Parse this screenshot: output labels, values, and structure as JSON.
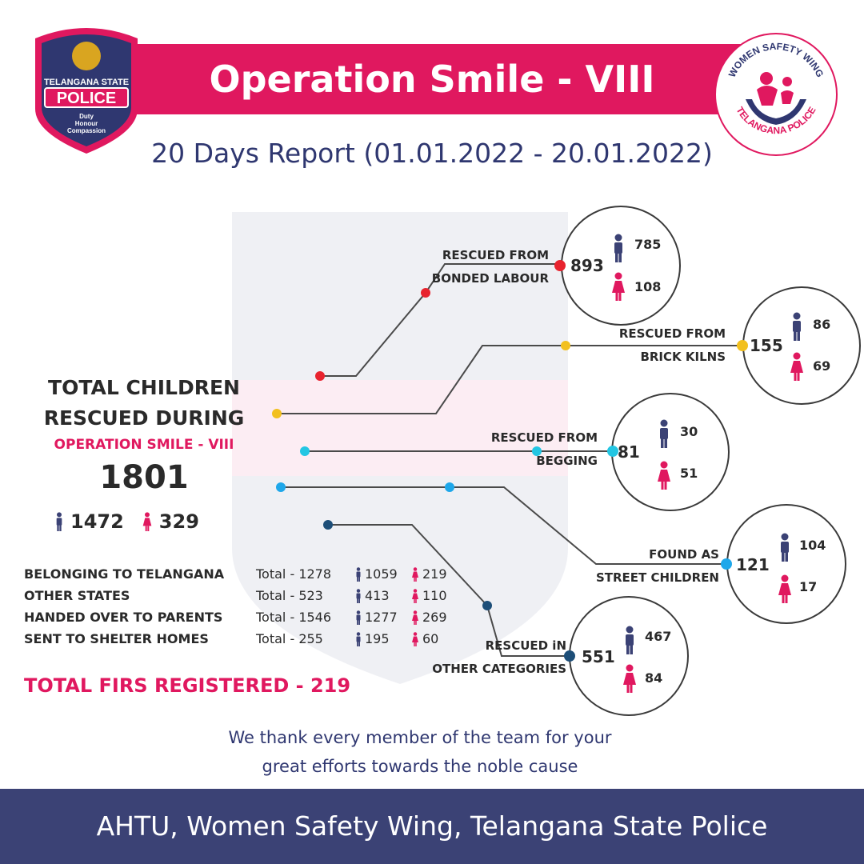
{
  "header": {
    "title": "Operation Smile - VIII",
    "subtitle": "20 Days Report (01.01.2022 - 20.01.2022)"
  },
  "logos": {
    "police": {
      "line1": "TELANGANA STATE",
      "line2": "POLICE",
      "line3": "Duty",
      "line4": "Honour",
      "line5": "Compassion"
    },
    "wsw": {
      "top": "WOMEN SAFETY WING",
      "bottom": "TELANGANA POLICE"
    }
  },
  "summary": {
    "heading_line1": "TOTAL CHILDREN",
    "heading_line2": "RESCUED DURING",
    "operation": "OPERATION SMILE - VIII",
    "total": "1801",
    "boys": "1472",
    "girls": "329"
  },
  "stats": [
    {
      "label": "BELONGING TO TELANGANA",
      "total": "Total - 1278",
      "boys": "1059",
      "girls": "219"
    },
    {
      "label": "OTHER STATES",
      "total": "Total - 523",
      "boys": "413",
      "girls": "110"
    },
    {
      "label": "HANDED OVER TO PARENTS",
      "total": "Total - 1546",
      "boys": "1277",
      "girls": "269"
    },
    {
      "label": "SENT TO SHELTER HOMES",
      "total": "Total - 255",
      "boys": "195",
      "girls": "60"
    }
  ],
  "firs": "TOTAL FIRS REGISTERED - 219",
  "categories": [
    {
      "line1": "RESCUED FROM",
      "line2": "BONDED LABOUR",
      "total": "893",
      "boys": "785",
      "girls": "108",
      "color": "#e8232e"
    },
    {
      "line1": "RESCUED FROM",
      "line2": "BRICK KILNS",
      "total": "155",
      "boys": "86",
      "girls": "69",
      "color": "#f2c01e"
    },
    {
      "line1": "RESCUED FROM",
      "line2": "BEGGING",
      "total": "81",
      "boys": "30",
      "girls": "51",
      "color": "#23c6e3"
    },
    {
      "line1": "FOUND AS",
      "line2": "STREET CHILDREN",
      "total": "121",
      "boys": "104",
      "girls": "17",
      "color": "#1ea7ea"
    },
    {
      "line1": "RESCUED iN",
      "line2": "OTHER CATEGORIES",
      "total": "551",
      "boys": "467",
      "girls": "84",
      "color": "#1d4e78"
    }
  ],
  "thanks_line1": "We thank every member of the team for your",
  "thanks_line2": "great efforts towards the noble cause",
  "footer": "AHTU, Women Safety Wing, Telangana State Police",
  "colors": {
    "pink": "#e0185f",
    "navy": "#2f3770",
    "footer": "#3b4275",
    "male": "#3b4275"
  }
}
